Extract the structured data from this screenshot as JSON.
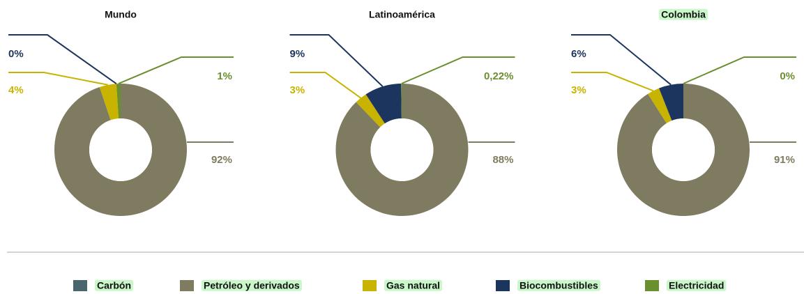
{
  "chart_data": [
    {
      "type": "pie",
      "title": "Mundo",
      "categories": [
        "Petróleo y derivados",
        "Gas natural",
        "Biocombustibles",
        "Electricidad"
      ],
      "values": [
        92,
        4,
        0,
        1
      ],
      "value_labels": [
        "92%",
        "4%",
        "0%",
        "1%"
      ],
      "colors": [
        "#7f7b60",
        "#c8b400",
        "#1c355e",
        "#6a8f2e"
      ]
    },
    {
      "type": "pie",
      "title": "Latinoamérica",
      "categories": [
        "Petróleo y derivados",
        "Gas natural",
        "Biocombustibles",
        "Electricidad"
      ],
      "values": [
        88,
        3,
        9,
        0.22
      ],
      "value_labels": [
        "88%",
        "3%",
        "9%",
        "0,22%"
      ],
      "colors": [
        "#7f7b60",
        "#c8b400",
        "#1c355e",
        "#6a8f2e"
      ]
    },
    {
      "type": "pie",
      "title": "Colombia",
      "categories": [
        "Petróleo y derivados",
        "Gas natural",
        "Biocombustibles",
        "Electricidad"
      ],
      "values": [
        91,
        3,
        6,
        0
      ],
      "value_labels": [
        "91%",
        "3%",
        "6%",
        "0%"
      ],
      "colors": [
        "#7f7b60",
        "#c8b400",
        "#1c355e",
        "#6a8f2e"
      ]
    }
  ],
  "legend": {
    "items": [
      {
        "name": "Carbón",
        "color": "#4a6470"
      },
      {
        "name": "Petróleo y derivados",
        "color": "#7f7b60"
      },
      {
        "name": "Gas natural",
        "color": "#c8b400"
      },
      {
        "name": "Biocombustibles",
        "color": "#1c355e"
      },
      {
        "name": "Electricidad",
        "color": "#6a8f2e"
      }
    ]
  }
}
